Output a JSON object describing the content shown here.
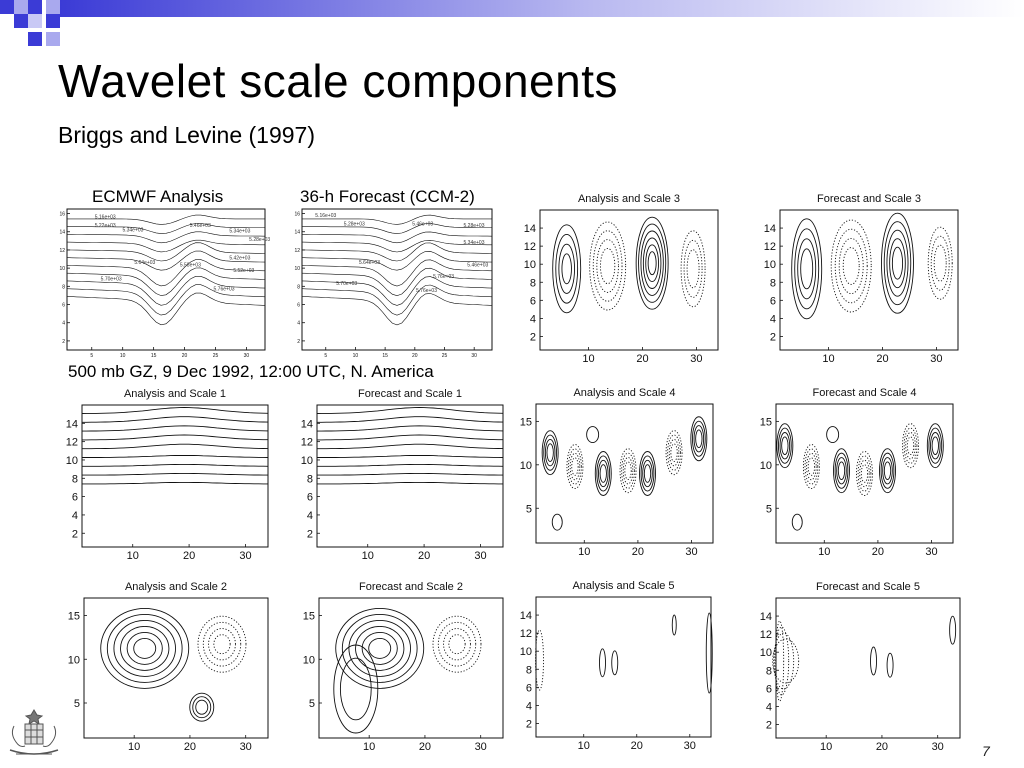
{
  "slide": {
    "title": "Wavelet scale components",
    "subtitle": "Briggs and Levine (1997)",
    "number": "7"
  },
  "labels": {
    "ecmwf": "ECMWF Analysis",
    "forecast": "36-h Forecast (CCM-2)",
    "caption": "500 mb GZ, 9 Dec 1992, 12:00 UTC, N. America"
  },
  "colors": {
    "bar_dark": "#3b3bd6",
    "bar_light": "#e8e8f8",
    "square_dark": "#3b3bd6",
    "square_light": "#a9a9ee"
  },
  "panels": [
    {
      "id": "analysis-raw",
      "title": "",
      "xticks": [
        "5",
        "10",
        "15",
        "20",
        "25",
        "30"
      ],
      "yticks": [
        "16",
        "14",
        "12",
        "10",
        "8",
        "6",
        "4",
        "2"
      ],
      "annotations": [
        "5.16e+03",
        "5.22e+03",
        "5.34e+03",
        "5.46e+03",
        "5.34e+03",
        "5.28e+03",
        "5.64e+03",
        "5.58e+03",
        "5.42e+03",
        "5.52e+03",
        "5.76e+03",
        "5.70e+03"
      ]
    },
    {
      "id": "forecast-raw",
      "title": "",
      "xticks": [
        "5",
        "10",
        "15",
        "20",
        "25",
        "30"
      ],
      "yticks": [
        "16",
        "14",
        "12",
        "10",
        "8",
        "6",
        "4",
        "2"
      ],
      "annotations": [
        "5.16e+03",
        "5.28e+03",
        "5.46e+03",
        "5.28e+03",
        "5.34e+03",
        "5.64e+03",
        "5.46e+03",
        "5.76e+03",
        "5.70e+03",
        "5.76e+03"
      ]
    },
    {
      "id": "analysis-scale-3",
      "title": "Analysis and Scale 3",
      "xticks": [
        "10",
        "20",
        "30"
      ],
      "yticks": [
        "14",
        "12",
        "10",
        "8",
        "6",
        "4",
        "2"
      ]
    },
    {
      "id": "forecast-scale-3",
      "title": "Forecast and Scale 3",
      "xticks": [
        "10",
        "20",
        "30"
      ],
      "yticks": [
        "14",
        "12",
        "10",
        "8",
        "6",
        "4",
        "2"
      ]
    },
    {
      "id": "analysis-scale-1",
      "title": "Analysis and Scale 1",
      "xticks": [
        "10",
        "20",
        "30"
      ],
      "yticks": [
        "14",
        "12",
        "10",
        "8",
        "6",
        "4",
        "2"
      ]
    },
    {
      "id": "forecast-scale-1",
      "title": "Forecast and Scale 1",
      "xticks": [
        "10",
        "20",
        "30"
      ],
      "yticks": [
        "14",
        "12",
        "10",
        "8",
        "6",
        "4",
        "2"
      ]
    },
    {
      "id": "analysis-scale-4",
      "title": "Analysis and Scale 4",
      "xticks": [
        "10",
        "20",
        "30"
      ],
      "yticks": [
        "15",
        "10",
        "5"
      ]
    },
    {
      "id": "forecast-scale-4",
      "title": "Forecast and Scale 4",
      "xticks": [
        "10",
        "20",
        "30"
      ],
      "yticks": [
        "15",
        "10",
        "5"
      ]
    },
    {
      "id": "analysis-scale-2",
      "title": "Analysis and Scale 2",
      "xticks": [
        "10",
        "20",
        "30"
      ],
      "yticks": [
        "15",
        "10",
        "5"
      ]
    },
    {
      "id": "forecast-scale-2",
      "title": "Forecast and Scale 2",
      "xticks": [
        "10",
        "20",
        "30"
      ],
      "yticks": [
        "15",
        "10",
        "5"
      ]
    },
    {
      "id": "analysis-scale-5",
      "title": "Analysis and Scale 5",
      "xticks": [
        "10",
        "20",
        "30"
      ],
      "yticks": [
        "14",
        "12",
        "10",
        "8",
        "6",
        "4",
        "2"
      ]
    },
    {
      "id": "forecast-scale-5",
      "title": "Forecast and Scale 5",
      "xticks": [
        "10",
        "20",
        "30"
      ],
      "yticks": [
        "14",
        "12",
        "10",
        "8",
        "6",
        "4",
        "2"
      ]
    }
  ]
}
